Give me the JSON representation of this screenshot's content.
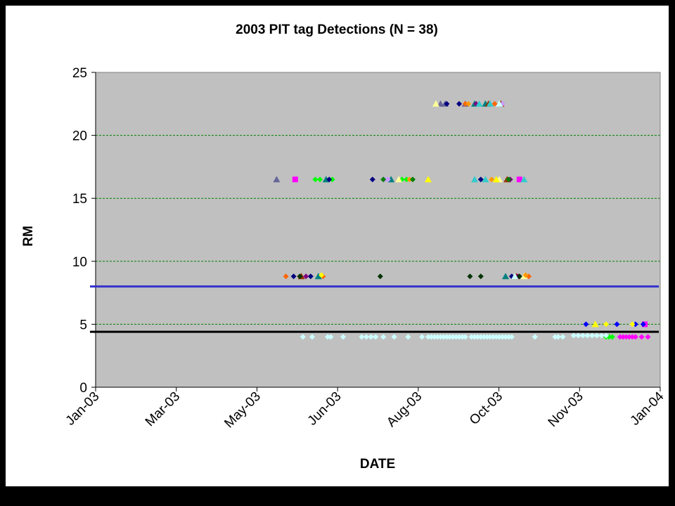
{
  "chart_data": {
    "type": "scatter",
    "title": "2003 PIT tag Detections (N = 38)",
    "xlabel": "DATE",
    "ylabel": "RM",
    "x_tick_labels": [
      "Jan-03",
      "Mar-03",
      "May-03",
      "Jun-03",
      "Aug-03",
      "Oct-03",
      "Nov-03",
      "Jan-04"
    ],
    "xlim": [
      "2003-01-01",
      "2004-01-01"
    ],
    "ylim": [
      0,
      25
    ],
    "y_ticks": [
      0,
      5,
      10,
      15,
      20,
      25
    ],
    "plot_background": "#c0c0c0",
    "gridlines": {
      "y_major": true,
      "style": "dashed",
      "color": "#008000"
    },
    "reference_lines": [
      {
        "y": 8.0,
        "color": "#3333cc"
      },
      {
        "y": 4.4,
        "color": "#000000"
      }
    ],
    "series": [
      {
        "marker": "triangle",
        "color": "#666699",
        "points": [
          [
            "2003-04-28",
            16.5
          ],
          [
            "2003-08-12",
            22.5
          ],
          [
            "2003-08-15",
            22.5
          ],
          [
            "2003-08-28",
            22.5
          ]
        ]
      },
      {
        "marker": "square",
        "color": "#ff00ff",
        "points": [
          [
            "2003-05-10",
            16.5
          ],
          [
            "2003-10-02",
            16.5
          ],
          [
            "2003-12-22",
            5.0
          ]
        ]
      },
      {
        "marker": "diamond",
        "color": "#00ff00",
        "points": [
          [
            "2003-05-23",
            16.5
          ],
          [
            "2003-05-26",
            16.5
          ],
          [
            "2003-06-03",
            16.5
          ],
          [
            "2003-07-18",
            16.5
          ],
          [
            "2003-07-21",
            16.5
          ],
          [
            "2003-11-27",
            4.0
          ],
          [
            "2003-11-29",
            4.0
          ],
          [
            "2003-12-01",
            4.0
          ]
        ]
      },
      {
        "marker": "triangle",
        "color": "#008080",
        "points": [
          [
            "2003-05-30",
            16.5
          ],
          [
            "2003-07-11",
            16.5
          ],
          [
            "2003-09-10",
            22.5
          ],
          [
            "2003-09-23",
            8.8
          ],
          [
            "2003-05-25",
            8.8
          ],
          [
            "2003-09-03",
            22.5
          ]
        ]
      },
      {
        "marker": "diamond",
        "color": "#000080",
        "points": [
          [
            "2003-06-01",
            16.5
          ],
          [
            "2003-06-29",
            16.5
          ],
          [
            "2003-08-16",
            22.5
          ],
          [
            "2003-08-24",
            22.5
          ],
          [
            "2003-09-07",
            16.5
          ],
          [
            "2003-05-09",
            8.8
          ],
          [
            "2003-05-20",
            8.8
          ],
          [
            "2003-09-27",
            8.8
          ]
        ]
      },
      {
        "marker": "diamond",
        "color": "#ff6600",
        "points": [
          [
            "2003-05-04",
            8.8
          ],
          [
            "2003-05-28",
            8.8
          ],
          [
            "2003-08-28",
            22.5
          ],
          [
            "2003-09-16",
            22.5
          ],
          [
            "2003-10-08",
            8.8
          ]
        ]
      },
      {
        "marker": "triangle",
        "color": "#993300",
        "points": [
          [
            "2003-05-14",
            8.8
          ],
          [
            "2003-09-12",
            22.5
          ],
          [
            "2003-09-20",
            22.5
          ],
          [
            "2003-09-24",
            16.5
          ],
          [
            "2003-09-30",
            8.8
          ]
        ]
      },
      {
        "marker": "diamond",
        "color": "#800080",
        "points": [
          [
            "2003-05-17",
            8.8
          ],
          [
            "2003-09-04",
            22.5
          ],
          [
            "2003-09-26",
            16.5
          ],
          [
            "2003-10-01",
            8.8
          ]
        ]
      },
      {
        "marker": "diamond",
        "color": "#003300",
        "points": [
          [
            "2003-07-04",
            8.8
          ],
          [
            "2003-08-31",
            8.8
          ],
          [
            "2003-09-07",
            8.8
          ],
          [
            "2003-10-02",
            8.8
          ],
          [
            "2003-05-13",
            8.8
          ]
        ]
      },
      {
        "marker": "diamond",
        "color": "#cc99ff",
        "points": [
          [
            "2003-07-07",
            16.5
          ],
          [
            "2003-07-09",
            16.5
          ],
          [
            "2003-09-21",
            22.5
          ]
        ]
      },
      {
        "marker": "triangle",
        "color": "#ffff99",
        "points": [
          [
            "2003-07-16",
            16.5
          ],
          [
            "2003-08-09",
            22.5
          ],
          [
            "2003-09-19",
            16.5
          ],
          [
            "2003-10-05",
            8.8
          ]
        ]
      },
      {
        "marker": "triangle",
        "color": "#ffff00",
        "points": [
          [
            "2003-08-04",
            16.5
          ],
          [
            "2003-09-17",
            16.5
          ],
          [
            "2003-11-20",
            5.0
          ]
        ]
      },
      {
        "marker": "diamond",
        "color": "#ff9900",
        "points": [
          [
            "2003-07-23",
            16.5
          ],
          [
            "2003-08-30",
            22.5
          ],
          [
            "2003-09-14",
            16.5
          ],
          [
            "2003-10-06",
            8.9
          ]
        ]
      },
      {
        "marker": "triangle",
        "color": "#33cccc",
        "points": [
          [
            "2003-09-03",
            16.5
          ],
          [
            "2003-09-10",
            16.5
          ],
          [
            "2003-10-05",
            16.5
          ],
          [
            "2003-09-06",
            22.5
          ],
          [
            "2003-09-13",
            22.5
          ]
        ]
      },
      {
        "marker": "diamond",
        "color": "#008000",
        "points": [
          [
            "2003-07-06",
            16.5
          ],
          [
            "2003-07-25",
            16.5
          ],
          [
            "2003-09-25",
            16.5
          ]
        ]
      },
      {
        "marker": "triangle",
        "color": "#ccffff",
        "points": [
          [
            "2003-09-19",
            22.5
          ],
          [
            "2003-09-29",
            8.8
          ]
        ]
      },
      {
        "marker": "diamond",
        "color": "#0000ff",
        "points": [
          [
            "2003-11-14",
            5.0
          ],
          [
            "2003-12-04",
            5.0
          ],
          [
            "2003-12-16",
            5.0
          ],
          [
            "2003-12-21",
            5.0
          ]
        ]
      },
      {
        "marker": "diamond",
        "color": "#ffff00",
        "points": [
          [
            "2003-11-27",
            5.0
          ],
          [
            "2003-12-14",
            5.0
          ],
          [
            "2003-05-27",
            8.9
          ]
        ]
      },
      {
        "marker": "diamond",
        "color": "#ff00ff",
        "points": [
          [
            "2003-12-06",
            4.0
          ],
          [
            "2003-12-08",
            4.0
          ],
          [
            "2003-12-10",
            4.0
          ],
          [
            "2003-12-12",
            4.0
          ],
          [
            "2003-12-14",
            4.0
          ],
          [
            "2003-12-16",
            4.0
          ],
          [
            "2003-12-20",
            4.0
          ],
          [
            "2003-12-24",
            4.0
          ]
        ]
      },
      {
        "marker": "diamond",
        "color": "#ccffff",
        "points": [
          [
            "2003-05-15",
            4.0
          ],
          [
            "2003-05-21",
            4.0
          ],
          [
            "2003-05-31",
            4.0
          ],
          [
            "2003-06-02",
            4.0
          ],
          [
            "2003-06-10",
            4.0
          ],
          [
            "2003-06-22",
            4.0
          ],
          [
            "2003-06-25",
            4.0
          ],
          [
            "2003-06-28",
            4.0
          ],
          [
            "2003-07-01",
            4.0
          ],
          [
            "2003-07-06",
            4.0
          ],
          [
            "2003-07-13",
            4.0
          ],
          [
            "2003-07-22",
            4.0
          ],
          [
            "2003-07-31",
            4.0
          ],
          [
            "2003-08-04",
            4.0
          ],
          [
            "2003-08-06",
            4.0
          ],
          [
            "2003-08-08",
            4.0
          ],
          [
            "2003-08-10",
            4.0
          ],
          [
            "2003-08-12",
            4.0
          ],
          [
            "2003-08-14",
            4.0
          ],
          [
            "2003-08-16",
            4.0
          ],
          [
            "2003-08-18",
            4.0
          ],
          [
            "2003-08-20",
            4.0
          ],
          [
            "2003-08-22",
            4.0
          ],
          [
            "2003-08-24",
            4.0
          ],
          [
            "2003-08-26",
            4.0
          ],
          [
            "2003-08-28",
            4.0
          ],
          [
            "2003-09-01",
            4.0
          ],
          [
            "2003-09-03",
            4.0
          ],
          [
            "2003-09-05",
            4.0
          ],
          [
            "2003-09-07",
            4.0
          ],
          [
            "2003-09-09",
            4.0
          ],
          [
            "2003-09-11",
            4.0
          ],
          [
            "2003-09-13",
            4.0
          ],
          [
            "2003-09-15",
            4.0
          ],
          [
            "2003-09-17",
            4.0
          ],
          [
            "2003-09-19",
            4.0
          ],
          [
            "2003-09-21",
            4.0
          ],
          [
            "2003-09-23",
            4.0
          ],
          [
            "2003-09-25",
            4.0
          ],
          [
            "2003-09-27",
            4.0
          ],
          [
            "2003-10-12",
            4.0
          ],
          [
            "2003-10-25",
            4.0
          ],
          [
            "2003-10-27",
            4.0
          ],
          [
            "2003-10-30",
            4.0
          ],
          [
            "2003-11-06",
            4.1
          ],
          [
            "2003-11-09",
            4.1
          ],
          [
            "2003-11-12",
            4.1
          ],
          [
            "2003-11-15",
            4.1
          ],
          [
            "2003-11-18",
            4.1
          ],
          [
            "2003-11-21",
            4.1
          ],
          [
            "2003-11-24",
            4.1
          ],
          [
            "2003-11-27",
            4.1
          ]
        ]
      }
    ]
  }
}
